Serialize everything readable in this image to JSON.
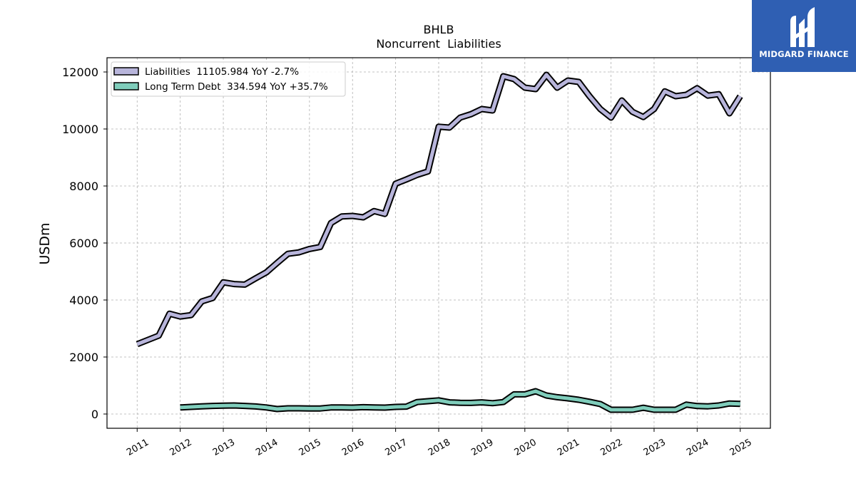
{
  "colors": {
    "liabilities_fill": "#b8b5db",
    "debt_fill": "#7fcdbb",
    "outline": "#000000",
    "logo_bg": "#2f5fb3",
    "grid": "#b0b0b0"
  },
  "logo": {
    "text": "MIDGARD FINANCE",
    "icon": "midgard-logo-icon"
  },
  "chart_data": {
    "type": "line",
    "title": "BHLB",
    "subtitle": "Noncurrent  Liabilities",
    "xlabel": "",
    "ylabel": "USDm",
    "ylim": [
      -500,
      12500
    ],
    "xlim": [
      2010.3,
      2025.7
    ],
    "yticks": [
      0,
      2000,
      4000,
      6000,
      8000,
      10000,
      12000
    ],
    "xticks": [
      "2011",
      "2012",
      "2013",
      "2014",
      "2015",
      "2016",
      "2017",
      "2018",
      "2019",
      "2020",
      "2021",
      "2022",
      "2023",
      "2024",
      "2025"
    ],
    "grid": true,
    "legend_position": "top-left",
    "series": [
      {
        "name": "Liabilities",
        "legend": "Liabilities  11105.984 YoY -2.7%",
        "x": [
          "2011-01",
          "2011-07",
          "2011-10",
          "2012-01",
          "2012-04",
          "2012-07",
          "2012-10",
          "2013-01",
          "2013-04",
          "2013-07",
          "2013-10",
          "2014-01",
          "2014-04",
          "2014-07",
          "2014-10",
          "2015-01",
          "2015-04",
          "2015-07",
          "2015-10",
          "2016-01",
          "2016-04",
          "2016-07",
          "2016-10",
          "2017-01",
          "2017-04",
          "2017-07",
          "2017-10",
          "2018-01",
          "2018-04",
          "2018-07",
          "2018-10",
          "2019-01",
          "2019-04",
          "2019-07",
          "2019-10",
          "2020-01",
          "2020-04",
          "2020-07",
          "2020-10",
          "2021-01",
          "2021-04",
          "2021-07",
          "2021-10",
          "2022-01",
          "2022-04",
          "2022-07",
          "2022-10",
          "2023-01",
          "2023-04",
          "2023-07",
          "2023-10",
          "2024-01",
          "2024-04",
          "2024-07",
          "2024-10",
          "2025-01"
        ],
        "values": [
          2450,
          2750,
          3520,
          3420,
          3470,
          3950,
          4070,
          4620,
          4560,
          4540,
          4760,
          4970,
          5300,
          5620,
          5670,
          5790,
          5860,
          6700,
          6930,
          6950,
          6900,
          7120,
          7020,
          8080,
          8230,
          8390,
          8510,
          10080,
          10050,
          10400,
          10520,
          10700,
          10650,
          11850,
          11750,
          11450,
          11400,
          11900,
          11450,
          11700,
          11650,
          11150,
          10700,
          10400,
          11000,
          10600,
          10420,
          10700,
          11320,
          11150,
          11200,
          11430,
          11170,
          11220,
          10550,
          11150
        ]
      },
      {
        "name": "Long Term Debt",
        "legend": "Long Term Debt  334.594 YoY +35.7%",
        "x": [
          "2012-01",
          "2012-04",
          "2012-07",
          "2012-10",
          "2013-01",
          "2013-04",
          "2013-07",
          "2013-10",
          "2014-01",
          "2014-04",
          "2014-07",
          "2014-10",
          "2015-01",
          "2015-04",
          "2015-07",
          "2015-10",
          "2016-01",
          "2016-04",
          "2016-07",
          "2016-10",
          "2017-01",
          "2017-04",
          "2017-07",
          "2017-10",
          "2018-01",
          "2018-04",
          "2018-07",
          "2018-10",
          "2019-01",
          "2019-04",
          "2019-07",
          "2019-10",
          "2020-01",
          "2020-04",
          "2020-07",
          "2020-10",
          "2021-01",
          "2021-04",
          "2021-07",
          "2021-10",
          "2022-01",
          "2022-04",
          "2022-07",
          "2022-10",
          "2023-01",
          "2023-04",
          "2023-07",
          "2023-10",
          "2024-01",
          "2024-04",
          "2024-07",
          "2024-10",
          "2025-01"
        ],
        "values": [
          230,
          250,
          270,
          285,
          295,
          300,
          285,
          265,
          230,
          175,
          200,
          200,
          195,
          195,
          230,
          230,
          225,
          240,
          230,
          225,
          250,
          260,
          420,
          450,
          480,
          410,
          395,
          390,
          410,
          380,
          420,
          690,
          690,
          800,
          650,
          590,
          550,
          500,
          430,
          350,
          150,
          150,
          150,
          220,
          150,
          150,
          150,
          330,
          280,
          270,
          300,
          370,
          355
        ]
      }
    ]
  }
}
